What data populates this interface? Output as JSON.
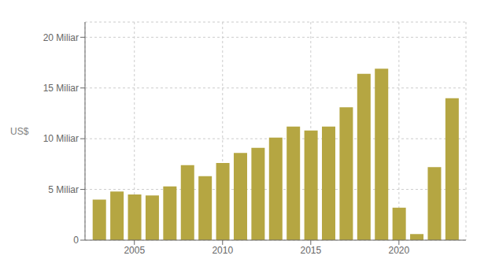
{
  "chart_data": {
    "type": "bar",
    "x": [
      2003,
      2004,
      2005,
      2006,
      2007,
      2008,
      2009,
      2010,
      2011,
      2012,
      2013,
      2014,
      2015,
      2016,
      2017,
      2018,
      2019,
      2020,
      2021,
      2022,
      2023
    ],
    "values": [
      4.0,
      4.8,
      4.5,
      4.4,
      5.3,
      7.4,
      6.3,
      7.6,
      8.6,
      9.1,
      10.1,
      11.2,
      10.8,
      11.2,
      13.1,
      16.4,
      16.9,
      3.2,
      0.6,
      7.2,
      14.0
    ],
    "color": "#b5a642",
    "ylabel": "US$",
    "xlim": [
      2002.2,
      2023.8
    ],
    "xticks": [
      2005,
      2010,
      2015,
      2020
    ],
    "ylim": [
      0,
      21.5
    ],
    "yticks": [
      0,
      {
        "value": 5,
        "label": "5 Miliar"
      },
      {
        "value": 10,
        "label": "10 Miliar"
      },
      {
        "value": 15,
        "label": "15 Miliar"
      },
      {
        "value": 20,
        "label": "20 Miliar"
      }
    ],
    "grid": true
  }
}
